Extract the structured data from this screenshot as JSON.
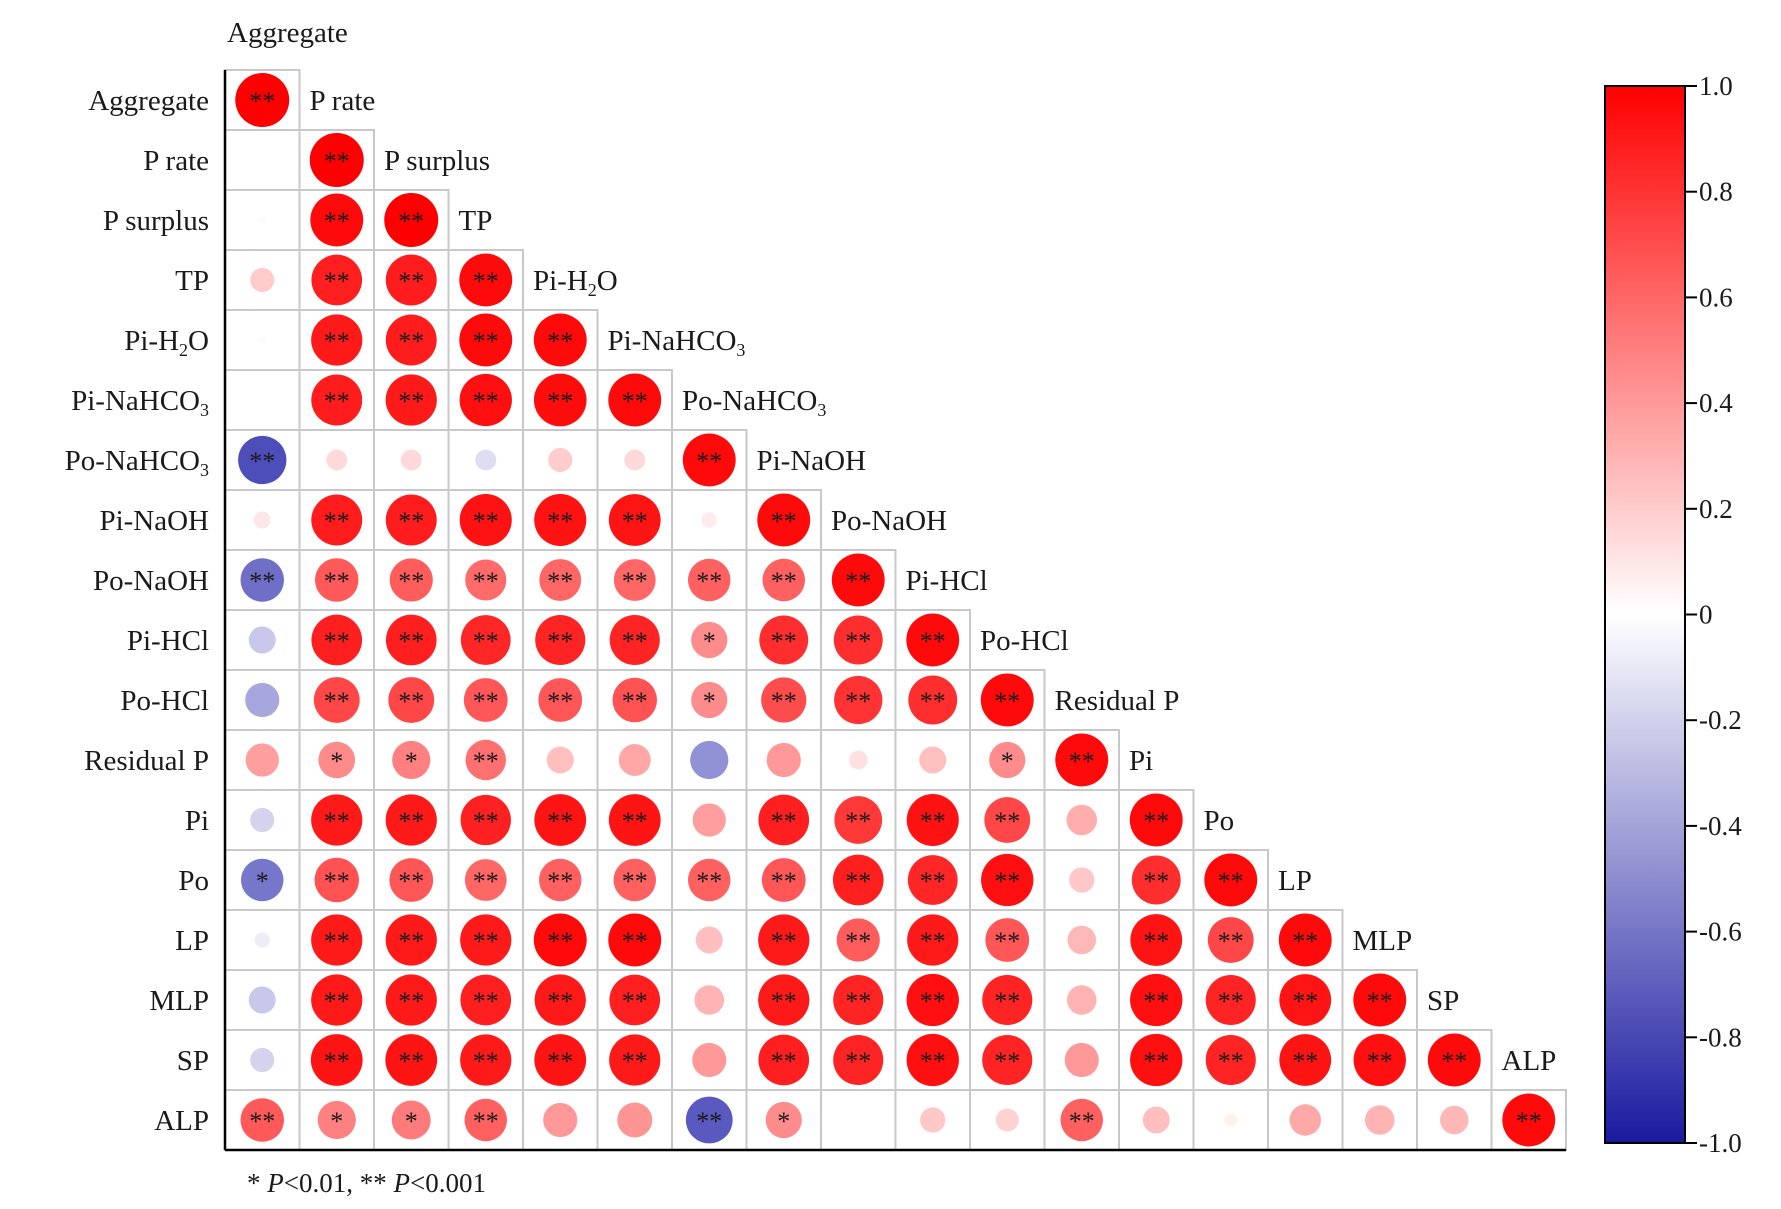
{
  "chart_data": {
    "type": "heatmap",
    "subtype": "correlation-lower-triangle-circles",
    "variables": [
      {
        "label": "Aggregate"
      },
      {
        "label": "P rate"
      },
      {
        "label": "P surplus"
      },
      {
        "label": "TP"
      },
      {
        "label": "Pi-H",
        "sub": "2",
        "tail": "O"
      },
      {
        "label": "Pi-NaHCO",
        "sub": "3",
        "tail": ""
      },
      {
        "label": "Po-NaHCO",
        "sub": "3",
        "tail": ""
      },
      {
        "label": "Pi-NaOH"
      },
      {
        "label": "Po-NaOH"
      },
      {
        "label": "Pi-HCl"
      },
      {
        "label": "Po-HCl"
      },
      {
        "label": "Residual P"
      },
      {
        "label": "Pi"
      },
      {
        "label": "Po"
      },
      {
        "label": "LP"
      },
      {
        "label": "MLP"
      },
      {
        "label": "SP"
      },
      {
        "label": "ALP"
      }
    ],
    "correlations": [
      [
        1.0
      ],
      [
        0.0,
        1.0
      ],
      [
        0.02,
        0.96,
        1.0
      ],
      [
        0.2,
        0.88,
        0.89,
        0.96
      ],
      [
        0.02,
        0.9,
        0.89,
        0.96,
        0.96
      ],
      [
        0.0,
        0.89,
        0.9,
        0.94,
        0.95,
        0.96
      ],
      [
        -0.8,
        0.15,
        0.15,
        -0.15,
        0.2,
        0.15,
        0.96
      ],
      [
        0.1,
        0.89,
        0.89,
        0.93,
        0.93,
        0.92,
        0.08,
        0.96
      ],
      [
        -0.65,
        0.65,
        0.64,
        0.58,
        0.6,
        0.6,
        0.62,
        0.62,
        0.96
      ],
      [
        -0.25,
        0.88,
        0.88,
        0.85,
        0.86,
        0.86,
        0.45,
        0.82,
        0.82,
        0.96
      ],
      [
        -0.4,
        0.72,
        0.72,
        0.66,
        0.66,
        0.68,
        0.45,
        0.7,
        0.8,
        0.82,
        0.96
      ],
      [
        0.38,
        0.46,
        0.5,
        0.56,
        0.25,
        0.35,
        -0.5,
        0.4,
        0.12,
        0.25,
        0.45,
        0.96
      ],
      [
        -0.2,
        0.9,
        0.9,
        0.87,
        0.92,
        0.92,
        0.38,
        0.88,
        0.78,
        0.93,
        0.72,
        0.32,
        0.96
      ],
      [
        -0.62,
        0.68,
        0.66,
        0.6,
        0.62,
        0.62,
        0.62,
        0.66,
        0.88,
        0.85,
        0.94,
        0.22,
        0.82,
        0.96
      ],
      [
        -0.08,
        0.9,
        0.9,
        0.9,
        0.96,
        0.96,
        0.25,
        0.9,
        0.64,
        0.9,
        0.66,
        0.28,
        0.92,
        0.72,
        0.96
      ],
      [
        -0.25,
        0.9,
        0.9,
        0.88,
        0.9,
        0.88,
        0.3,
        0.9,
        0.86,
        0.94,
        0.86,
        0.3,
        0.94,
        0.86,
        0.92,
        0.96
      ],
      [
        -0.2,
        0.92,
        0.92,
        0.9,
        0.92,
        0.9,
        0.4,
        0.88,
        0.86,
        0.94,
        0.86,
        0.4,
        0.94,
        0.86,
        0.92,
        0.94,
        0.96
      ],
      [
        0.65,
        0.5,
        0.52,
        0.62,
        0.4,
        0.42,
        -0.75,
        0.45,
        0.0,
        0.22,
        0.18,
        0.62,
        0.25,
        0.06,
        0.34,
        0.3,
        0.28,
        0.96
      ]
    ],
    "significance": [
      [
        "**"
      ],
      [
        "",
        "**"
      ],
      [
        "",
        "**",
        "**"
      ],
      [
        "",
        "**",
        "**",
        "**"
      ],
      [
        "",
        "**",
        "**",
        "**",
        "**"
      ],
      [
        "",
        "**",
        "**",
        "**",
        "**",
        "**"
      ],
      [
        "**",
        "",
        "",
        "",
        "",
        "",
        "**"
      ],
      [
        "",
        "**",
        "**",
        "**",
        "**",
        "**",
        "",
        "**"
      ],
      [
        "**",
        "**",
        "**",
        "**",
        "**",
        "**",
        "**",
        "**",
        "**"
      ],
      [
        "",
        "**",
        "**",
        "**",
        "**",
        "**",
        "*",
        "**",
        "**",
        "**"
      ],
      [
        "",
        "**",
        "**",
        "**",
        "**",
        "**",
        "*",
        "**",
        "**",
        "**",
        "**"
      ],
      [
        "",
        "*",
        "*",
        "**",
        "",
        "",
        "",
        "",
        "",
        "",
        "*",
        "**"
      ],
      [
        "",
        "**",
        "**",
        "**",
        "**",
        "**",
        "",
        "**",
        "**",
        "**",
        "**",
        "",
        "**"
      ],
      [
        "*",
        "**",
        "**",
        "**",
        "**",
        "**",
        "**",
        "**",
        "**",
        "**",
        "**",
        "",
        "**",
        "**"
      ],
      [
        "",
        "**",
        "**",
        "**",
        "**",
        "**",
        "",
        "**",
        "**",
        "**",
        "**",
        "",
        "**",
        "**",
        "**"
      ],
      [
        "",
        "**",
        "**",
        "**",
        "**",
        "**",
        "",
        "**",
        "**",
        "**",
        "**",
        "",
        "**",
        "**",
        "**",
        "**"
      ],
      [
        "",
        "**",
        "**",
        "**",
        "**",
        "**",
        "",
        "**",
        "**",
        "**",
        "**",
        "",
        "**",
        "**",
        "**",
        "**",
        "**"
      ],
      [
        "**",
        "*",
        "*",
        "**",
        "",
        "",
        "**",
        "*",
        "",
        "",
        "",
        "**",
        "",
        "",
        "",
        "",
        "",
        "**"
      ]
    ],
    "colorbar": {
      "range": [
        -1.0,
        1.0
      ],
      "ticks": [
        "1.0",
        "0.8",
        "0.6",
        "0.4",
        "0.2",
        "0",
        "-0.2",
        "-0.4",
        "-0.6",
        "-0.8",
        "-1.0"
      ],
      "colors": {
        "negative": "#2222aa",
        "zero": "#ffffff",
        "positive": "#ff0000"
      }
    },
    "footnote": {
      "s1": "* ",
      "p1": "P",
      "t1": "<0.01, ** ",
      "p2": "P",
      "t2": "<0.001"
    }
  }
}
